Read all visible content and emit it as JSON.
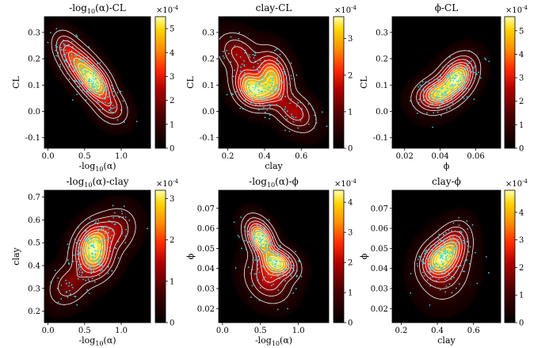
{
  "chart_data": [
    {
      "type": "heatmap",
      "title": "-log10(α)-CL",
      "title_parts": [
        "-log",
        "10",
        "(α)-CL"
      ],
      "xlabel": "-log10(α)",
      "xlabel_parts": [
        "-log",
        "10",
        "(α)"
      ],
      "ylabel": "CL",
      "xlim": [
        -0.05,
        1.4
      ],
      "ylim": [
        -0.14,
        0.36
      ],
      "xticks": [
        0.0,
        0.5,
        1.0
      ],
      "xtick_labels": [
        "0.0",
        "0.5",
        "1.0"
      ],
      "yticks": [
        -0.1,
        0.0,
        0.1,
        0.2,
        0.3
      ],
      "ytick_labels": [
        "-0.1",
        "0.0",
        "0.1",
        "0.2",
        "0.3"
      ],
      "colorbar": {
        "multiplier": "×10-4",
        "range": [
          0,
          5.5
        ],
        "ticks": [
          0,
          1,
          2,
          3,
          4,
          5
        ],
        "tick_labels": [
          "0",
          "1",
          "2",
          "3",
          "4",
          "5"
        ]
      },
      "density_modes": [
        {
          "x": 0.45,
          "y": 0.17,
          "sx": 0.14,
          "sy": 0.045,
          "rho": -0.5,
          "w": 0.8
        },
        {
          "x": 0.65,
          "y": 0.105,
          "sx": 0.12,
          "sy": 0.04,
          "rho": -0.4,
          "w": 1.0
        },
        {
          "x": 0.85,
          "y": 0.02,
          "sx": 0.12,
          "sy": 0.035,
          "rho": -0.3,
          "w": 0.35
        },
        {
          "x": 0.25,
          "y": 0.24,
          "sx": 0.1,
          "sy": 0.035,
          "rho": -0.3,
          "w": 0.3
        }
      ]
    },
    {
      "type": "heatmap",
      "title": "clay-CL",
      "title_parts": [
        "clay-CL",
        "",
        ""
      ],
      "xlabel": "clay",
      "xlabel_parts": [
        "clay",
        "",
        ""
      ],
      "ylabel": "CL",
      "xlim": [
        0.15,
        0.75
      ],
      "ylim": [
        -0.14,
        0.36
      ],
      "xticks": [
        0.2,
        0.4,
        0.6
      ],
      "xtick_labels": [
        "0.2",
        "0.4",
        "0.6"
      ],
      "yticks": [
        -0.1,
        0.0,
        0.1,
        0.2,
        0.3
      ],
      "ytick_labels": [
        "-0.1",
        "0.0",
        "0.1",
        "0.2",
        "0.3"
      ],
      "colorbar": {
        "multiplier": "×10-4",
        "range": [
          0,
          3.6
        ],
        "ticks": [
          0,
          1,
          2,
          3
        ],
        "tick_labels": [
          "0",
          "1",
          "2",
          "3"
        ]
      },
      "density_modes": [
        {
          "x": 0.32,
          "y": 0.1,
          "sx": 0.05,
          "sy": 0.04,
          "rho": -0.3,
          "w": 0.9
        },
        {
          "x": 0.44,
          "y": 0.13,
          "sx": 0.05,
          "sy": 0.05,
          "rho": -0.2,
          "w": 1.0
        },
        {
          "x": 0.38,
          "y": 0.07,
          "sx": 0.06,
          "sy": 0.03,
          "rho": 0.0,
          "w": 0.6
        },
        {
          "x": 0.56,
          "y": 0.0,
          "sx": 0.06,
          "sy": 0.04,
          "rho": -0.4,
          "w": 0.4
        },
        {
          "x": 0.26,
          "y": 0.22,
          "sx": 0.06,
          "sy": 0.04,
          "rho": -0.3,
          "w": 0.35
        }
      ]
    },
    {
      "type": "heatmap",
      "title": "ϕ-CL",
      "title_parts": [
        "ϕ-CL",
        "",
        ""
      ],
      "xlabel": "ϕ",
      "xlabel_parts": [
        "ϕ",
        "",
        ""
      ],
      "ylabel": "CL",
      "xlim": [
        0.013,
        0.074
      ],
      "ylim": [
        -0.14,
        0.36
      ],
      "xticks": [
        0.02,
        0.04,
        0.06
      ],
      "xtick_labels": [
        "0.02",
        "0.04",
        "0.06"
      ],
      "yticks": [
        -0.1,
        0.0,
        0.1,
        0.2,
        0.3
      ],
      "ytick_labels": [
        "-0.1",
        "0.0",
        "0.1",
        "0.2",
        "0.3"
      ],
      "colorbar": {
        "multiplier": "×10-4",
        "range": [
          0,
          5.6
        ],
        "ticks": [
          0,
          1,
          2,
          3,
          4,
          5
        ],
        "tick_labels": [
          "0",
          "1",
          "2",
          "3",
          "4",
          "5"
        ]
      },
      "density_modes": [
        {
          "x": 0.038,
          "y": 0.065,
          "sx": 0.006,
          "sy": 0.03,
          "rho": 0.2,
          "w": 0.9
        },
        {
          "x": 0.05,
          "y": 0.13,
          "sx": 0.005,
          "sy": 0.04,
          "rho": 0.3,
          "w": 1.0
        },
        {
          "x": 0.045,
          "y": 0.1,
          "sx": 0.007,
          "sy": 0.05,
          "rho": 0.5,
          "w": 0.4
        }
      ]
    },
    {
      "type": "heatmap",
      "title": "-log10(α)-clay",
      "title_parts": [
        "-log",
        "10",
        "(α)-clay"
      ],
      "xlabel": "-log10(α)",
      "xlabel_parts": [
        "-log",
        "10",
        "(α)"
      ],
      "ylabel": "clay",
      "xlim": [
        -0.05,
        1.4
      ],
      "ylim": [
        0.15,
        0.73
      ],
      "xticks": [
        0.0,
        0.5,
        1.0
      ],
      "xtick_labels": [
        "0.0",
        "0.5",
        "1.0"
      ],
      "yticks": [
        0.2,
        0.3,
        0.4,
        0.5,
        0.6,
        0.7
      ],
      "ytick_labels": [
        "0.2",
        "0.3",
        "0.4",
        "0.5",
        "0.6",
        "0.7"
      ],
      "colorbar": {
        "multiplier": "×10-4",
        "range": [
          0,
          3.2
        ],
        "ticks": [
          0,
          1,
          2,
          3
        ],
        "tick_labels": [
          "0",
          "1",
          "2",
          "3"
        ]
      },
      "density_modes": [
        {
          "x": 0.6,
          "y": 0.5,
          "sx": 0.13,
          "sy": 0.05,
          "rho": 0.3,
          "w": 1.0
        },
        {
          "x": 0.65,
          "y": 0.43,
          "sx": 0.14,
          "sy": 0.05,
          "rho": 0.2,
          "w": 0.9
        },
        {
          "x": 0.9,
          "y": 0.55,
          "sx": 0.15,
          "sy": 0.05,
          "rho": 0.2,
          "w": 0.4
        },
        {
          "x": 0.3,
          "y": 0.32,
          "sx": 0.15,
          "sy": 0.05,
          "rho": 0.3,
          "w": 0.3
        }
      ]
    },
    {
      "type": "heatmap",
      "title": "-log10(α)-ϕ",
      "title_parts": [
        "-log",
        "10",
        "(α)-ϕ"
      ],
      "xlabel": "-log10(α)",
      "xlabel_parts": [
        "-log",
        "10",
        "(α)"
      ],
      "ylabel": "ϕ",
      "xlim": [
        -0.05,
        1.4
      ],
      "ylim": [
        0.013,
        0.079
      ],
      "xticks": [
        0.0,
        0.5,
        1.0
      ],
      "xtick_labels": [
        "0.0",
        "0.5",
        "1.0"
      ],
      "yticks": [
        0.02,
        0.03,
        0.04,
        0.05,
        0.06,
        0.07
      ],
      "ytick_labels": [
        "0.02",
        "0.03",
        "0.04",
        "0.05",
        "0.06",
        "0.07"
      ],
      "colorbar": {
        "multiplier": "×10-4",
        "range": [
          0,
          4.4
        ],
        "ticks": [
          0,
          1,
          2,
          3,
          4
        ],
        "tick_labels": [
          "0",
          "1",
          "2",
          "3",
          "4"
        ]
      },
      "density_modes": [
        {
          "x": 0.5,
          "y": 0.055,
          "sx": 0.1,
          "sy": 0.005,
          "rho": -0.4,
          "w": 1.0
        },
        {
          "x": 0.72,
          "y": 0.043,
          "sx": 0.13,
          "sy": 0.004,
          "rho": -0.3,
          "w": 0.9
        },
        {
          "x": 0.6,
          "y": 0.035,
          "sx": 0.15,
          "sy": 0.006,
          "rho": -0.2,
          "w": 0.35
        }
      ]
    },
    {
      "type": "heatmap",
      "title": "clay-ϕ",
      "title_parts": [
        "clay-ϕ",
        "",
        ""
      ],
      "xlabel": "clay",
      "xlabel_parts": [
        "clay",
        "",
        ""
      ],
      "ylabel": "ϕ",
      "xlim": [
        0.15,
        0.75
      ],
      "ylim": [
        0.013,
        0.079
      ],
      "xticks": [
        0.2,
        0.4,
        0.6
      ],
      "xtick_labels": [
        "0.2",
        "0.4",
        "0.6"
      ],
      "yticks": [
        0.02,
        0.03,
        0.04,
        0.05,
        0.06,
        0.07
      ],
      "ytick_labels": [
        "0.02",
        "0.03",
        "0.04",
        "0.05",
        "0.06",
        "0.07"
      ],
      "colorbar": {
        "multiplier": "×10-4",
        "range": [
          0,
          4.8
        ],
        "ticks": [
          0,
          1,
          2,
          3,
          4
        ],
        "tick_labels": [
          "0",
          "1",
          "2",
          "3",
          "4"
        ]
      },
      "density_modes": [
        {
          "x": 0.4,
          "y": 0.044,
          "sx": 0.05,
          "sy": 0.005,
          "rho": 0.2,
          "w": 1.0
        },
        {
          "x": 0.48,
          "y": 0.05,
          "sx": 0.05,
          "sy": 0.006,
          "rho": 0.3,
          "w": 0.9
        },
        {
          "x": 0.44,
          "y": 0.04,
          "sx": 0.07,
          "sy": 0.008,
          "rho": 0.1,
          "w": 0.4
        }
      ]
    }
  ]
}
